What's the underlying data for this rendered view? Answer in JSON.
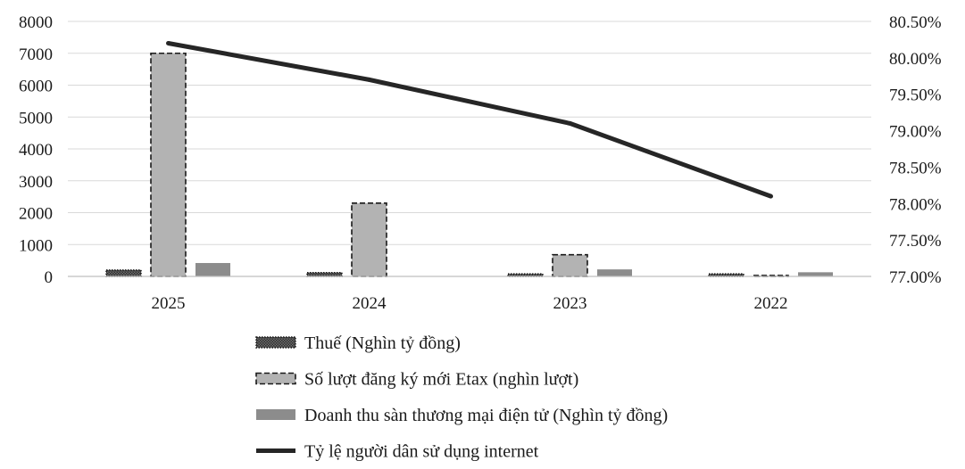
{
  "chart_data": {
    "type": "bar",
    "categories": [
      "2025",
      "2024",
      "2023",
      "2022"
    ],
    "series": [
      {
        "name": "Thuế (Nghìn tỷ đồng)",
        "kind": "bar",
        "axis": "left",
        "style": "dotted-dark",
        "values": [
          200,
          120,
          80,
          80
        ]
      },
      {
        "name": "Số lượt đăng ký mới Etax (nghìn lượt)",
        "kind": "bar",
        "axis": "left",
        "style": "dashed-light",
        "values": [
          7000,
          2300,
          680,
          30
        ]
      },
      {
        "name": "Doanh thu sàn thương mại điện tử (Nghìn tỷ đồng)",
        "kind": "bar",
        "axis": "left",
        "style": "solid-gray",
        "values": [
          420,
          0,
          220,
          130
        ]
      },
      {
        "name": "Tỷ lệ người dân sử dụng internet",
        "kind": "line",
        "axis": "right",
        "style": "solid-black",
        "values": [
          80.2,
          79.7,
          79.1,
          78.1
        ]
      }
    ],
    "ylim": [
      0,
      8000
    ],
    "y_ticks": [
      "0",
      "1000",
      "2000",
      "3000",
      "4000",
      "5000",
      "6000",
      "7000",
      "8000"
    ],
    "y2lim": [
      77.0,
      80.5
    ],
    "y2_ticks": [
      "77.00%",
      "77.50%",
      "78.00%",
      "78.50%",
      "79.00%",
      "79.50%",
      "80.00%",
      "80.50%"
    ],
    "grid": true,
    "legend_position": "bottom",
    "colors": {
      "grid": "#d9d9d9",
      "axis": "#bfbfbf",
      "bar_dark": "#595959",
      "bar_light": "#b3b3b3",
      "bar_gray": "#8c8c8c",
      "line": "#262626"
    }
  }
}
